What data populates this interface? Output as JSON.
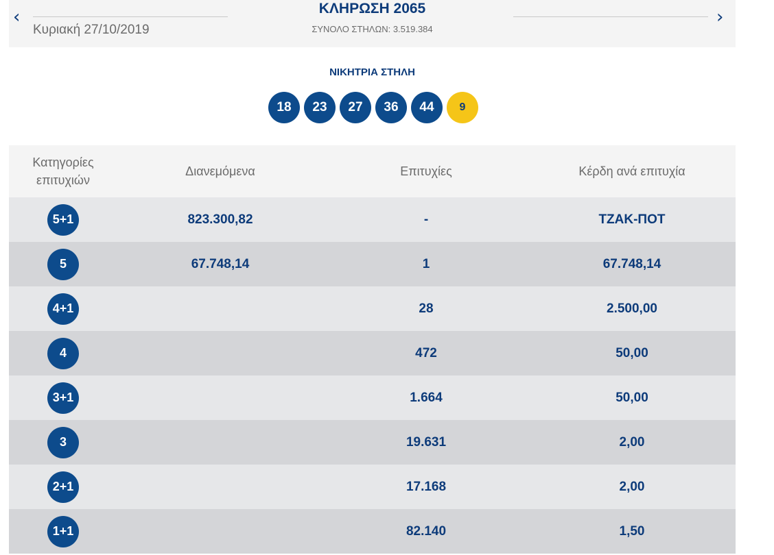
{
  "header": {
    "prev_label": "‹",
    "next_label": "›",
    "date": "Κυριακή 27/10/2019",
    "draw_title": "ΚΛΗΡΩΣΗ 2065",
    "total_columns": "ΣΥΝΟΛΟ ΣΤΗΛΩΝ: 3.519.384"
  },
  "winning": {
    "title": "ΝΙΚΗΤΡΙΑ ΣΤΗΛΗ",
    "numbers": [
      "18",
      "23",
      "27",
      "36",
      "44"
    ],
    "bonus": "9"
  },
  "table": {
    "headers": {
      "category": "Κατηγορίες επιτυχιών",
      "distributed": "Διανεμόμενα",
      "winners": "Επιτυχίες",
      "prize": "Κέρδη ανά επιτυχία"
    },
    "rows": [
      {
        "category": "5+1",
        "distributed": "823.300,82",
        "winners": "-",
        "prize": "ΤΖΑΚ-ΠΟΤ"
      },
      {
        "category": "5",
        "distributed": "67.748,14",
        "winners": "1",
        "prize": "67.748,14"
      },
      {
        "category": "4+1",
        "distributed": "",
        "winners": "28",
        "prize": "2.500,00"
      },
      {
        "category": "4",
        "distributed": "",
        "winners": "472",
        "prize": "50,00"
      },
      {
        "category": "3+1",
        "distributed": "",
        "winners": "1.664",
        "prize": "50,00"
      },
      {
        "category": "3",
        "distributed": "",
        "winners": "19.631",
        "prize": "2,00"
      },
      {
        "category": "2+1",
        "distributed": "",
        "winners": "17.168",
        "prize": "2,00"
      },
      {
        "category": "1+1",
        "distributed": "",
        "winners": "82.140",
        "prize": "1,50"
      }
    ]
  },
  "colors": {
    "primary": "#0d3b7a",
    "ball": "#0d4b8c",
    "bonus_ball": "#f5c518",
    "row_light": "#e6e7e9",
    "row_dark": "#d4d5d8"
  }
}
